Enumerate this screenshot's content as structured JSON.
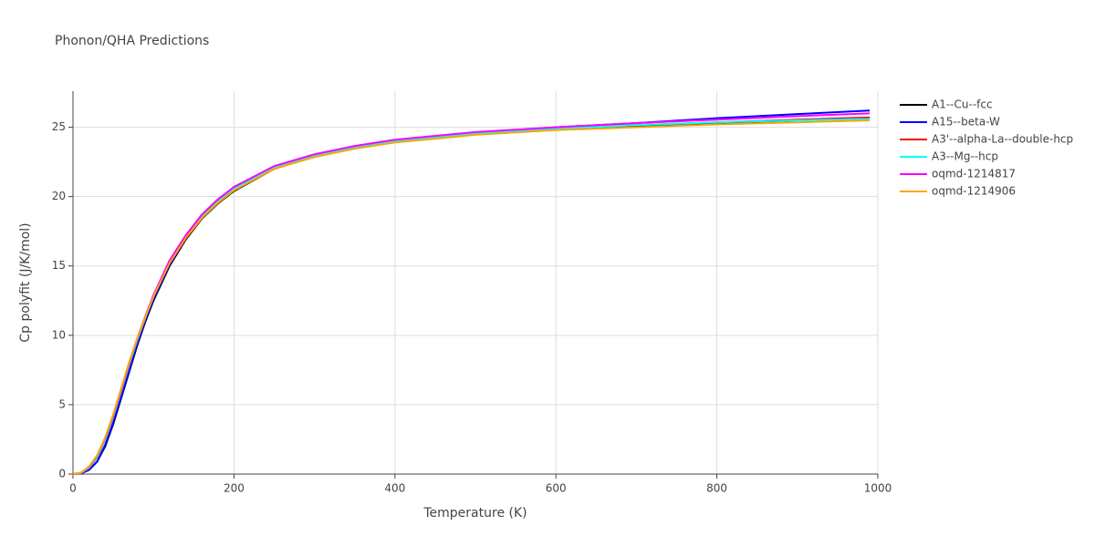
{
  "chart_data": {
    "type": "line",
    "title": "Phonon/QHA Predictions",
    "xlabel": "Temperature (K)",
    "ylabel": "Cp polyfit (J/K/mol)",
    "xlim": [
      0,
      1000
    ],
    "ylim": [
      0,
      27.6
    ],
    "xticks": [
      0,
      200,
      400,
      600,
      800,
      1000
    ],
    "yticks": [
      0,
      5,
      10,
      15,
      20,
      25
    ],
    "grid": true,
    "x": [
      0,
      10,
      20,
      30,
      40,
      50,
      60,
      70,
      80,
      90,
      100,
      120,
      140,
      160,
      180,
      200,
      250,
      300,
      350,
      400,
      500,
      600,
      700,
      800,
      900,
      990
    ],
    "series": [
      {
        "name": "A1--Cu--fcc",
        "color": "#000000",
        "values": [
          0,
          0.05,
          0.3,
          0.9,
          2.0,
          3.6,
          5.5,
          7.4,
          9.3,
          11.0,
          12.5,
          15.0,
          16.9,
          18.4,
          19.5,
          20.4,
          22.0,
          22.9,
          23.5,
          23.95,
          24.5,
          24.85,
          25.1,
          25.3,
          25.5,
          25.65
        ]
      },
      {
        "name": "A15--beta-W",
        "color": "#0000ff",
        "values": [
          0,
          0.05,
          0.3,
          0.9,
          2.1,
          3.7,
          5.6,
          7.5,
          9.4,
          11.1,
          12.6,
          15.1,
          17.0,
          18.5,
          19.6,
          20.5,
          22.05,
          22.95,
          23.55,
          24.0,
          24.6,
          25.0,
          25.3,
          25.65,
          25.95,
          26.2
        ]
      },
      {
        "name": "A3'--alpha-La--double-hcp",
        "color": "#ff0000",
        "values": [
          0,
          0.08,
          0.45,
          1.2,
          2.5,
          4.1,
          6.0,
          7.9,
          9.7,
          11.3,
          12.8,
          15.3,
          17.15,
          18.6,
          19.7,
          20.6,
          22.15,
          23.0,
          23.6,
          24.05,
          24.6,
          24.9,
          25.15,
          25.35,
          25.55,
          25.7
        ]
      },
      {
        "name": "A3--Mg--hcp",
        "color": "#00ffff",
        "values": [
          0,
          0.08,
          0.45,
          1.2,
          2.5,
          4.1,
          6.0,
          7.9,
          9.7,
          11.3,
          12.8,
          15.3,
          17.1,
          18.55,
          19.65,
          20.55,
          22.1,
          22.95,
          23.55,
          24.0,
          24.55,
          24.9,
          25.15,
          25.35,
          25.5,
          25.6
        ]
      },
      {
        "name": "oqmd-1214817",
        "color": "#ff00ff",
        "values": [
          0,
          0.1,
          0.5,
          1.3,
          2.6,
          4.2,
          6.1,
          8.0,
          9.8,
          11.4,
          12.9,
          15.4,
          17.2,
          18.7,
          19.8,
          20.7,
          22.2,
          23.05,
          23.65,
          24.1,
          24.65,
          25.0,
          25.3,
          25.55,
          25.8,
          26.0
        ]
      },
      {
        "name": "oqmd-1214906",
        "color": "#ffa500",
        "values": [
          0,
          0.1,
          0.55,
          1.35,
          2.65,
          4.3,
          6.2,
          8.1,
          9.8,
          11.35,
          12.8,
          15.2,
          17.0,
          18.45,
          19.55,
          20.45,
          22.0,
          22.85,
          23.45,
          23.9,
          24.45,
          24.8,
          25.0,
          25.2,
          25.35,
          25.5
        ]
      }
    ]
  }
}
